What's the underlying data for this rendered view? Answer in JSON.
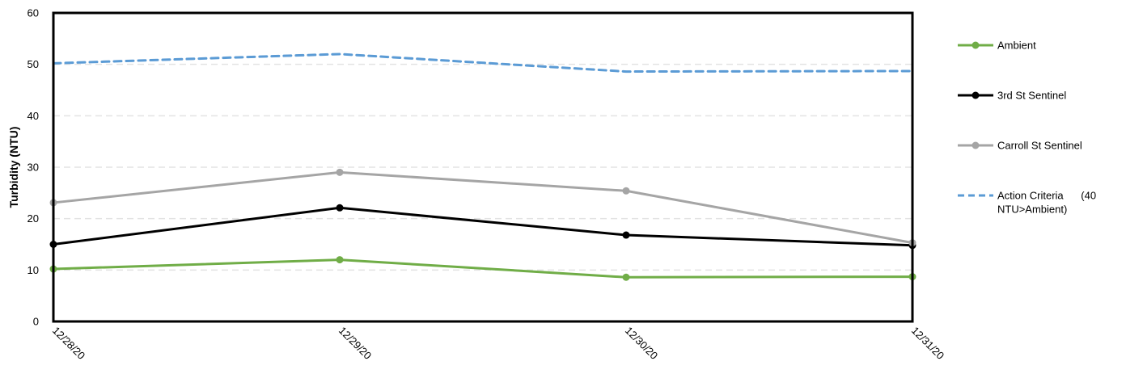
{
  "chart_data": {
    "type": "line",
    "title": "",
    "xlabel": "",
    "ylabel": "Turbidity (NTU)",
    "categories": [
      "12/28/20",
      "12/29/20",
      "12/30/20",
      "12/31/20"
    ],
    "ylim": [
      0,
      60
    ],
    "yticks": [
      0,
      10,
      20,
      30,
      40,
      50,
      60
    ],
    "grid": "horizontal dashed",
    "legend_position": "right",
    "series": [
      {
        "name": "Ambient",
        "values": [
          10.2,
          12.0,
          8.6,
          8.7
        ],
        "color": "#70ad47",
        "style": "solid",
        "markers": true
      },
      {
        "name": "3rd St Sentinel",
        "values": [
          15.0,
          22.1,
          16.8,
          14.8
        ],
        "color": "#000000",
        "style": "solid",
        "markers": true
      },
      {
        "name": "Carroll St Sentinel",
        "values": [
          23.1,
          29.0,
          25.4,
          15.3
        ],
        "color": "#a5a5a5",
        "style": "solid",
        "markers": true
      },
      {
        "name_lines": [
          "Action Criteria      (40",
          "NTU>Ambient)"
        ],
        "values": [
          50.2,
          52.0,
          48.6,
          48.7
        ],
        "color": "#5b9bd5",
        "style": "dashed",
        "markers": false
      }
    ]
  }
}
